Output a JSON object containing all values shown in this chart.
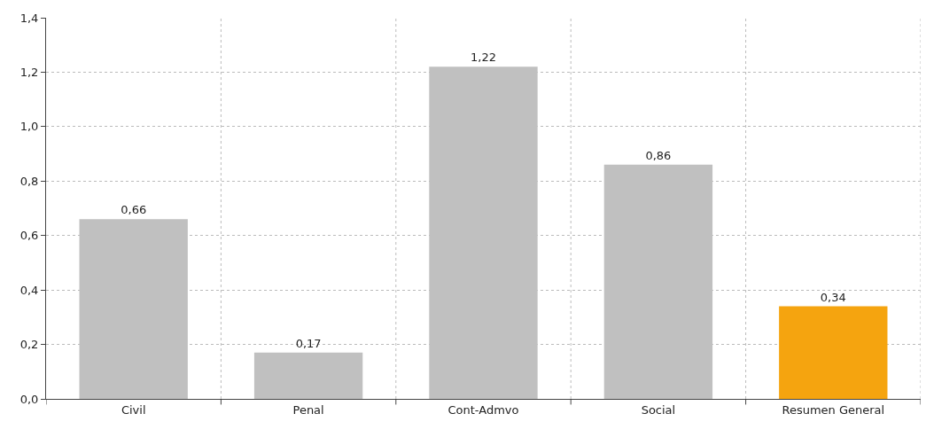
{
  "chart_data": {
    "type": "bar",
    "categories": [
      "Civil",
      "Penal",
      "Cont-Admvo",
      "Social",
      "Resumen General"
    ],
    "values": [
      0.66,
      0.17,
      1.22,
      0.86,
      0.34
    ],
    "colors": [
      "#c0c0c0",
      "#c0c0c0",
      "#c0c0c0",
      "#c0c0c0",
      "#f5a40f"
    ],
    "value_labels": [
      "0,66",
      "0,17",
      "1,22",
      "0,86",
      "0,34"
    ],
    "ylim": [
      0,
      1.4
    ],
    "yticks": [
      {
        "value": 0,
        "label": "0,0"
      },
      {
        "value": 0.2,
        "label": "0,2"
      },
      {
        "value": 0.4,
        "label": "0,4"
      },
      {
        "value": 0.6,
        "label": "0,6"
      },
      {
        "value": 0.8,
        "label": "0,8"
      },
      {
        "value": 1,
        "label": "1,0"
      },
      {
        "value": 1.2,
        "label": "1,2"
      },
      {
        "value": 1.4,
        "label": "1,4"
      }
    ],
    "grid": true
  }
}
